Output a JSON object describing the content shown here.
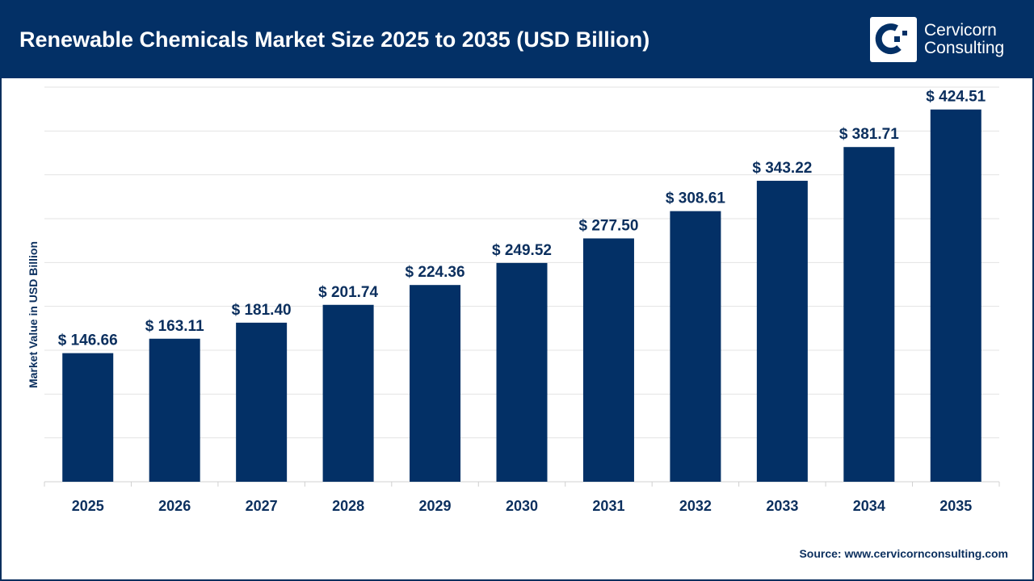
{
  "header": {
    "title": "Renewable Chemicals Market Size 2025 to 2035 (USD Billion)",
    "logo_text": [
      "Cervicorn",
      "Consulting"
    ]
  },
  "source": "Source: www.cervicornconsulting.com",
  "chart_data": {
    "type": "bar",
    "title": "Renewable Chemicals Market Size 2025 to 2035 (USD Billion)",
    "xlabel": "",
    "ylabel": "Market Value in USD Billion",
    "categories": [
      "2025",
      "2026",
      "2027",
      "2028",
      "2029",
      "2030",
      "2031",
      "2032",
      "2033",
      "2034",
      "2035"
    ],
    "values": [
      146.66,
      163.11,
      181.4,
      201.74,
      224.36,
      249.52,
      277.5,
      308.61,
      343.22,
      381.71,
      424.51
    ],
    "data_labels": [
      "$ 146.66",
      "$ 163.11",
      "$ 181.40",
      "$ 201.74",
      "$ 224.36",
      "$ 249.52",
      "$ 277.50",
      "$ 308.61",
      "$ 343.22",
      "$ 381.71",
      "$ 424.51"
    ],
    "ylim": [
      0,
      450
    ],
    "ygrid_step": 50,
    "grid": true,
    "bar_color": "#033066",
    "grid_color": "#e3e3e3"
  }
}
